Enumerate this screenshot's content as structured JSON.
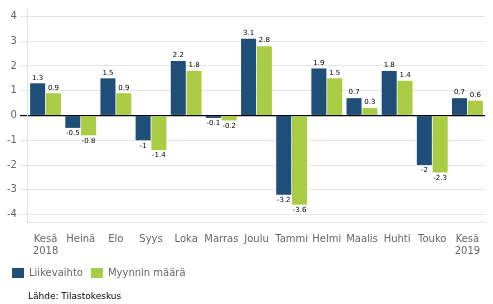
{
  "chart_data": {
    "type": "bar",
    "categories": [
      "Kesä\n2018",
      "Heinä",
      "Elo",
      "Syys",
      "Loka",
      "Marras",
      "Joulu",
      "Tammi",
      "Helmi",
      "Maalis",
      "Huhti",
      "Touko",
      "Kesä\n2019"
    ],
    "series": [
      {
        "name": "Liikevaihto",
        "color": "#1F4E79",
        "values": [
          1.3,
          -0.5,
          1.5,
          -1.0,
          2.2,
          -0.1,
          3.1,
          -3.2,
          1.9,
          0.7,
          1.8,
          -2.0,
          0.7
        ]
      },
      {
        "name": "Myynnin määrä",
        "color": "#AACC44",
        "values": [
          0.9,
          -0.8,
          0.9,
          -1.4,
          1.8,
          -0.2,
          2.8,
          -3.6,
          1.5,
          0.3,
          1.4,
          -2.3,
          0.6
        ]
      }
    ],
    "ylim": [
      -4.3,
      4.3
    ],
    "yticks": [
      -4,
      -3,
      -2,
      -1,
      0,
      1,
      2,
      3,
      4
    ],
    "grid": true,
    "legend": "lower left",
    "data_labels": true,
    "annotations": [
      "Lähde: Tilastokeskus"
    ]
  }
}
